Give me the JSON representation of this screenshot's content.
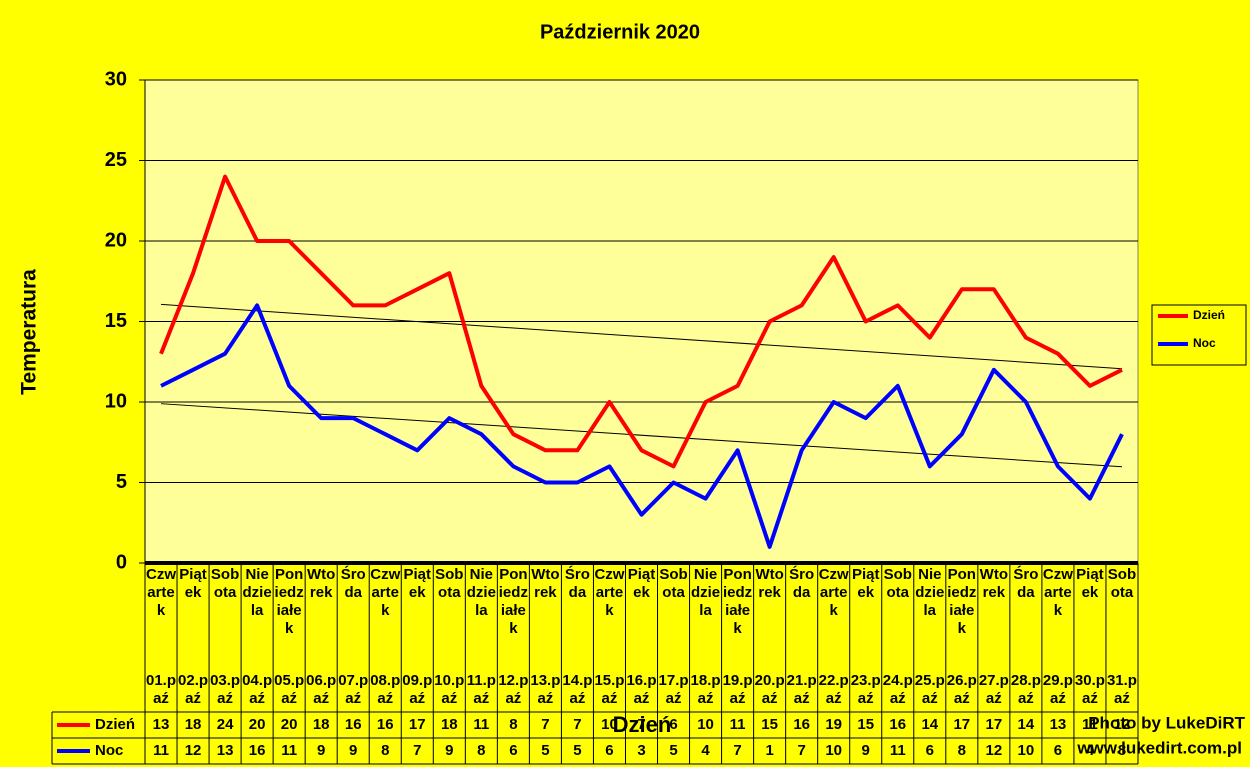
{
  "chart_data": {
    "type": "line",
    "title": "Październik 2020",
    "y_label": "Temperatura",
    "x_label": "Dzień",
    "days": [
      "Czwartek",
      "Piątek",
      "Sobota",
      "Niedziela",
      "Poniedziałek",
      "Wtorek",
      "Środa",
      "Czwartek",
      "Piątek",
      "Sobota",
      "Niedziela",
      "Poniedziałek",
      "Wtorek",
      "Środa",
      "Czwartek",
      "Piątek",
      "Sobota",
      "Niedziela",
      "Poniedziałek",
      "Wtorek",
      "Środa",
      "Czwartek",
      "Piątek",
      "Sobota",
      "Niedziela",
      "Poniedziałek",
      "Wtorek",
      "Środa",
      "Czwartek",
      "Piątek",
      "Sobota"
    ],
    "categories": [
      "01.paź",
      "02.paź",
      "03.paź",
      "04.paź",
      "05.paź",
      "06.paź",
      "07.paź",
      "08.paź",
      "09.paź",
      "10.paź",
      "11.paź",
      "12.paź",
      "13.paź",
      "14.paź",
      "15.paź",
      "16.paź",
      "17.paź",
      "18.paź",
      "19.paź",
      "20.paź",
      "21.paź",
      "22.paź",
      "23.paź",
      "24.paź",
      "25.paź",
      "26.paź",
      "27.paź",
      "28.paź",
      "29.paź",
      "30.paź",
      "31.paź"
    ],
    "series": [
      {
        "name": "Dzień",
        "color": "#ff0000",
        "values": [
          13,
          18,
          24,
          20,
          20,
          18,
          16,
          16,
          17,
          18,
          11,
          8,
          7,
          7,
          10,
          7,
          6,
          10,
          11,
          15,
          16,
          19,
          15,
          16,
          14,
          17,
          17,
          14,
          13,
          11,
          12
        ]
      },
      {
        "name": "Noc",
        "color": "#0000ff",
        "values": [
          11,
          12,
          13,
          16,
          11,
          9,
          9,
          8,
          7,
          9,
          8,
          6,
          5,
          5,
          6,
          3,
          5,
          4,
          7,
          1,
          7,
          10,
          9,
          11,
          6,
          8,
          12,
          10,
          6,
          4,
          8
        ]
      }
    ],
    "ylim": [
      0,
      30
    ],
    "yticks": [
      0,
      5,
      10,
      15,
      20,
      25,
      30
    ],
    "grid": true,
    "trendline": true,
    "legend": "right",
    "data_table": true,
    "watermark": [
      "Photo by LukeDiRT",
      "www.lukedirt.com.pl"
    ]
  }
}
